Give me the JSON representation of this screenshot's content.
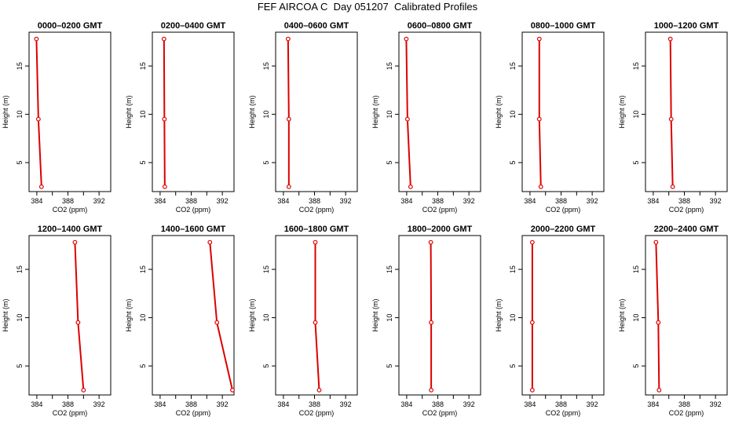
{
  "figure": {
    "title": "FEF AIRCOA C  Day 051207  Calibrated Profiles"
  },
  "chart_data": [
    {
      "type": "line",
      "title": "0000–0200 GMT",
      "xlabel": "CO2 (ppm)",
      "ylabel": "Height (m)",
      "xlim": [
        383,
        393.5
      ],
      "ylim": [
        2,
        18.5
      ],
      "xticks": [
        384,
        388,
        392
      ],
      "yticks": [
        5,
        10,
        15
      ],
      "xtick_labels": [
        "384",
        "388",
        "392"
      ],
      "ytick_labels": [
        "5",
        "10",
        "15"
      ],
      "color": "#dd0000",
      "marker": "open-circle",
      "x": [
        384.6,
        384.2,
        383.95
      ],
      "y": [
        2.5,
        9.5,
        17.8
      ],
      "grid": false
    },
    {
      "type": "line",
      "title": "0200–0400 GMT",
      "xlabel": "CO2 (ppm)",
      "ylabel": "Height (m)",
      "xlim": [
        383,
        393.5
      ],
      "ylim": [
        2,
        18.5
      ],
      "xticks": [
        384,
        388,
        392
      ],
      "yticks": [
        5,
        10,
        15
      ],
      "xtick_labels": [
        "384",
        "388",
        "392"
      ],
      "ytick_labels": [
        "5",
        "10",
        "15"
      ],
      "color": "#dd0000",
      "marker": "open-circle",
      "x": [
        384.6,
        384.55,
        384.5
      ],
      "y": [
        2.5,
        9.5,
        17.8
      ],
      "grid": false
    },
    {
      "type": "line",
      "title": "0400–0600 GMT",
      "xlabel": "CO2 (ppm)",
      "ylabel": "Height (m)",
      "xlim": [
        383,
        393.5
      ],
      "ylim": [
        2,
        18.5
      ],
      "xticks": [
        384,
        388,
        392
      ],
      "yticks": [
        5,
        10,
        15
      ],
      "xtick_labels": [
        "384",
        "388",
        "392"
      ],
      "ytick_labels": [
        "5",
        "10",
        "15"
      ],
      "color": "#dd0000",
      "marker": "open-circle",
      "x": [
        384.7,
        384.7,
        384.6
      ],
      "y": [
        2.5,
        9.5,
        17.8
      ],
      "grid": false
    },
    {
      "type": "line",
      "title": "0600–0800 GMT",
      "xlabel": "CO2 (ppm)",
      "ylabel": "Height (m)",
      "xlim": [
        383,
        393.5
      ],
      "ylim": [
        2,
        18.5
      ],
      "xticks": [
        384,
        388,
        392
      ],
      "yticks": [
        5,
        10,
        15
      ],
      "xtick_labels": [
        "384",
        "388",
        "392"
      ],
      "ytick_labels": [
        "5",
        "10",
        "15"
      ],
      "color": "#dd0000",
      "marker": "open-circle",
      "x": [
        384.5,
        384.1,
        383.95
      ],
      "y": [
        2.5,
        9.5,
        17.8
      ],
      "grid": false
    },
    {
      "type": "line",
      "title": "0800–1000 GMT",
      "xlabel": "CO2 (ppm)",
      "ylabel": "Height (m)",
      "xlim": [
        383,
        393.5
      ],
      "ylim": [
        2,
        18.5
      ],
      "xticks": [
        384,
        388,
        392
      ],
      "yticks": [
        5,
        10,
        15
      ],
      "xtick_labels": [
        "384",
        "388",
        "392"
      ],
      "ytick_labels": [
        "5",
        "10",
        "15"
      ],
      "color": "#dd0000",
      "marker": "open-circle",
      "x": [
        385.4,
        385.2,
        385.2
      ],
      "y": [
        2.5,
        9.5,
        17.8
      ],
      "grid": false
    },
    {
      "type": "line",
      "title": "1000–1200 GMT",
      "xlabel": "CO2 (ppm)",
      "ylabel": "Height (m)",
      "xlim": [
        383,
        393.5
      ],
      "ylim": [
        2,
        18.5
      ],
      "xticks": [
        384,
        388,
        392
      ],
      "yticks": [
        5,
        10,
        15
      ],
      "xtick_labels": [
        "384",
        "388",
        "392"
      ],
      "ytick_labels": [
        "5",
        "10",
        "15"
      ],
      "color": "#dd0000",
      "marker": "open-circle",
      "x": [
        386.5,
        386.3,
        386.2
      ],
      "y": [
        2.5,
        9.5,
        17.8
      ],
      "grid": false
    },
    {
      "type": "line",
      "title": "1200–1400 GMT",
      "xlabel": "CO2 (ppm)",
      "ylabel": "Height (m)",
      "xlim": [
        383,
        393.5
      ],
      "ylim": [
        2,
        18.5
      ],
      "xticks": [
        384,
        388,
        392
      ],
      "yticks": [
        5,
        10,
        15
      ],
      "xtick_labels": [
        "384",
        "388",
        "392"
      ],
      "ytick_labels": [
        "5",
        "10",
        "15"
      ],
      "color": "#dd0000",
      "marker": "open-circle",
      "x": [
        390.0,
        389.3,
        388.9
      ],
      "y": [
        2.5,
        9.5,
        17.8
      ],
      "grid": false
    },
    {
      "type": "line",
      "title": "1400–1600 GMT",
      "xlabel": "CO2 (ppm)",
      "ylabel": "Height (m)",
      "xlim": [
        383,
        393.5
      ],
      "ylim": [
        2,
        18.5
      ],
      "xticks": [
        384,
        388,
        392
      ],
      "yticks": [
        5,
        10,
        15
      ],
      "xtick_labels": [
        "384",
        "388",
        "392"
      ],
      "ytick_labels": [
        "5",
        "10",
        "15"
      ],
      "color": "#dd0000",
      "marker": "open-circle",
      "x": [
        393.3,
        391.3,
        390.4
      ],
      "y": [
        2.5,
        9.5,
        17.8
      ],
      "grid": false
    },
    {
      "type": "line",
      "title": "1600–1800 GMT",
      "xlabel": "CO2 (ppm)",
      "ylabel": "Height (m)",
      "xlim": [
        383,
        393.5
      ],
      "ylim": [
        2,
        18.5
      ],
      "xticks": [
        384,
        388,
        392
      ],
      "yticks": [
        5,
        10,
        15
      ],
      "xtick_labels": [
        "384",
        "388",
        "392"
      ],
      "ytick_labels": [
        "5",
        "10",
        "15"
      ],
      "color": "#dd0000",
      "marker": "open-circle",
      "x": [
        388.6,
        388.1,
        388.1
      ],
      "y": [
        2.5,
        9.5,
        17.8
      ],
      "grid": false
    },
    {
      "type": "line",
      "title": "1800–2000 GMT",
      "xlabel": "CO2 (ppm)",
      "ylabel": "Height (m)",
      "xlim": [
        383,
        393.5
      ],
      "ylim": [
        2,
        18.5
      ],
      "xticks": [
        384,
        388,
        392
      ],
      "yticks": [
        5,
        10,
        15
      ],
      "xtick_labels": [
        "384",
        "388",
        "392"
      ],
      "ytick_labels": [
        "5",
        "10",
        "15"
      ],
      "color": "#dd0000",
      "marker": "open-circle",
      "x": [
        387.15,
        387.15,
        387.1
      ],
      "y": [
        2.5,
        9.5,
        17.8
      ],
      "grid": false
    },
    {
      "type": "line",
      "title": "2000–2200 GMT",
      "xlabel": "CO2 (ppm)",
      "ylabel": "Height (m)",
      "xlim": [
        383,
        393.5
      ],
      "ylim": [
        2,
        18.5
      ],
      "xticks": [
        384,
        388,
        392
      ],
      "yticks": [
        5,
        10,
        15
      ],
      "xtick_labels": [
        "384",
        "388",
        "392"
      ],
      "ytick_labels": [
        "5",
        "10",
        "15"
      ],
      "color": "#dd0000",
      "marker": "open-circle",
      "x": [
        384.3,
        384.3,
        384.3
      ],
      "y": [
        2.5,
        9.5,
        17.8
      ],
      "grid": false
    },
    {
      "type": "line",
      "title": "2200–2400 GMT",
      "xlabel": "CO2 (ppm)",
      "ylabel": "Height (m)",
      "xlim": [
        383,
        393.5
      ],
      "ylim": [
        2,
        18.5
      ],
      "xticks": [
        384,
        388,
        392
      ],
      "yticks": [
        5,
        10,
        15
      ],
      "xtick_labels": [
        "384",
        "388",
        "392"
      ],
      "ytick_labels": [
        "5",
        "10",
        "15"
      ],
      "color": "#dd0000",
      "marker": "open-circle",
      "x": [
        384.75,
        384.65,
        384.35
      ],
      "y": [
        2.5,
        9.5,
        17.8
      ],
      "grid": false
    }
  ]
}
